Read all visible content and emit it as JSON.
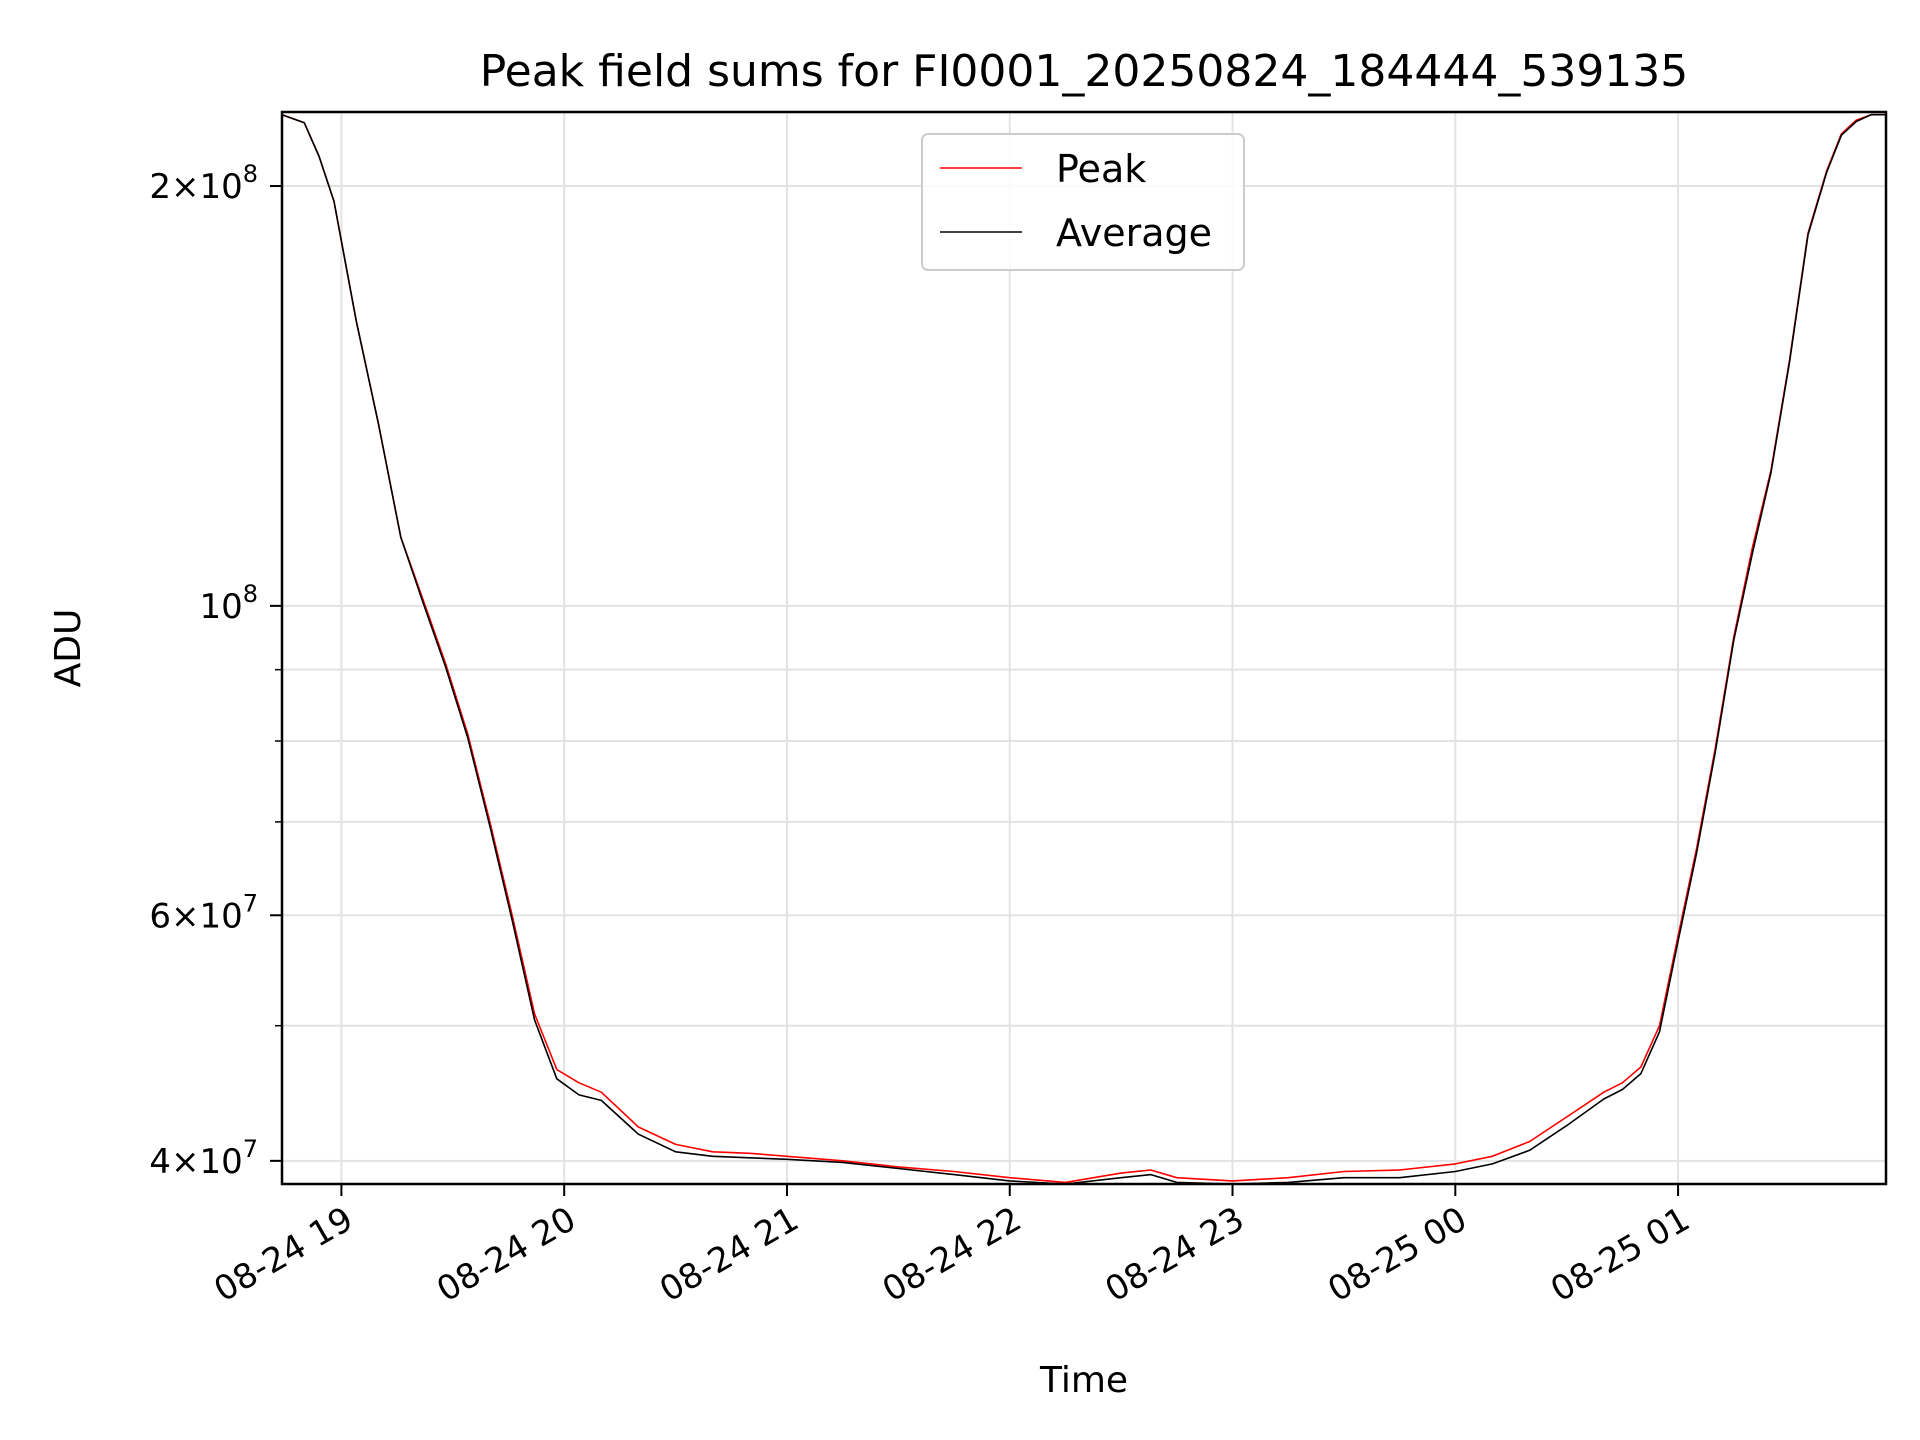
{
  "chart_data": {
    "type": "line",
    "title": "Peak field sums for FI0001_20250824_184444_539135",
    "xlabel": "Time",
    "ylabel": "ADU",
    "yscale": "log",
    "grid": true,
    "legend_position": "upper center",
    "x_ticks": [
      "08-24 19",
      "08-24 20",
      "08-24 21",
      "08-24 22",
      "08-24 23",
      "08-25 00",
      "08-25 01"
    ],
    "xlim": [
      "2025-08-24 18:44",
      "2025-08-25 01:56"
    ],
    "ylim": [
      38500000,
      226000000
    ],
    "y_ticks": [
      {
        "value": 40000000,
        "mantissa": "4",
        "exponent": "7"
      },
      {
        "value": 60000000,
        "mantissa": "6",
        "exponent": "7"
      },
      {
        "value": 100000000,
        "mantissa": "",
        "exponent": "8"
      },
      {
        "value": 200000000,
        "mantissa": "2",
        "exponent": "8"
      }
    ],
    "y_minor_ticks": [
      50000000,
      70000000,
      80000000,
      90000000
    ],
    "series": [
      {
        "name": "Peak",
        "color": "#ff0000",
        "x": [
          "2025-08-24 18:44",
          "2025-08-24 18:50",
          "2025-08-24 18:54",
          "2025-08-24 18:58",
          "2025-08-24 19:04",
          "2025-08-24 19:10",
          "2025-08-24 19:16",
          "2025-08-24 19:22",
          "2025-08-24 19:28",
          "2025-08-24 19:34",
          "2025-08-24 19:40",
          "2025-08-24 19:46",
          "2025-08-24 19:52",
          "2025-08-24 19:58",
          "2025-08-24 20:04",
          "2025-08-24 20:10",
          "2025-08-24 20:20",
          "2025-08-24 20:30",
          "2025-08-24 20:40",
          "2025-08-24 20:50",
          "2025-08-24 21:00",
          "2025-08-24 21:15",
          "2025-08-24 21:30",
          "2025-08-24 21:45",
          "2025-08-24 22:00",
          "2025-08-24 22:15",
          "2025-08-24 22:30",
          "2025-08-24 22:38",
          "2025-08-24 22:45",
          "2025-08-24 23:00",
          "2025-08-24 23:15",
          "2025-08-24 23:30",
          "2025-08-24 23:45",
          "2025-08-25 00:00",
          "2025-08-25 00:10",
          "2025-08-25 00:20",
          "2025-08-25 00:30",
          "2025-08-25 00:40",
          "2025-08-25 00:45",
          "2025-08-25 00:50",
          "2025-08-25 00:55",
          "2025-08-25 01:00",
          "2025-08-25 01:05",
          "2025-08-25 01:10",
          "2025-08-25 01:15",
          "2025-08-25 01:20",
          "2025-08-25 01:25",
          "2025-08-25 01:30",
          "2025-08-25 01:35",
          "2025-08-25 01:40",
          "2025-08-25 01:44",
          "2025-08-25 01:48",
          "2025-08-25 01:52",
          "2025-08-25 01:56"
        ],
        "y": [
          225000000,
          222000000,
          210000000,
          195000000,
          160000000,
          135000000,
          112000000,
          101000000,
          91000000,
          81000000,
          70000000,
          60000000,
          51000000,
          46500000,
          45500000,
          44800000,
          42300000,
          41100000,
          40600000,
          40500000,
          40300000,
          40000000,
          39600000,
          39300000,
          38900000,
          38600000,
          39200000,
          39400000,
          38900000,
          38700000,
          38900000,
          39300000,
          39400000,
          39800000,
          40300000,
          41300000,
          43000000,
          44800000,
          45500000,
          46700000,
          50000000,
          58000000,
          67000000,
          79000000,
          95000000,
          110000000,
          125000000,
          150000000,
          185000000,
          205000000,
          218000000,
          223000000,
          225000000,
          225000000
        ]
      },
      {
        "name": "Average",
        "color": "#000000",
        "x": [
          "2025-08-24 18:44",
          "2025-08-24 18:50",
          "2025-08-24 18:54",
          "2025-08-24 18:58",
          "2025-08-24 19:04",
          "2025-08-24 19:10",
          "2025-08-24 19:16",
          "2025-08-24 19:22",
          "2025-08-24 19:28",
          "2025-08-24 19:34",
          "2025-08-24 19:40",
          "2025-08-24 19:46",
          "2025-08-24 19:52",
          "2025-08-24 19:58",
          "2025-08-24 20:04",
          "2025-08-24 20:10",
          "2025-08-24 20:20",
          "2025-08-24 20:30",
          "2025-08-24 20:40",
          "2025-08-24 20:50",
          "2025-08-24 21:00",
          "2025-08-24 21:15",
          "2025-08-24 21:30",
          "2025-08-24 21:45",
          "2025-08-24 22:00",
          "2025-08-24 22:15",
          "2025-08-24 22:30",
          "2025-08-24 22:38",
          "2025-08-24 22:45",
          "2025-08-24 23:00",
          "2025-08-24 23:15",
          "2025-08-24 23:30",
          "2025-08-24 23:45",
          "2025-08-25 00:00",
          "2025-08-25 00:10",
          "2025-08-25 00:20",
          "2025-08-25 00:30",
          "2025-08-25 00:40",
          "2025-08-25 00:45",
          "2025-08-25 00:50",
          "2025-08-25 00:55",
          "2025-08-25 01:00",
          "2025-08-25 01:05",
          "2025-08-25 01:10",
          "2025-08-25 01:15",
          "2025-08-25 01:20",
          "2025-08-25 01:25",
          "2025-08-25 01:30",
          "2025-08-25 01:35",
          "2025-08-25 01:40",
          "2025-08-25 01:44",
          "2025-08-25 01:48",
          "2025-08-25 01:52",
          "2025-08-25 01:56"
        ],
        "y": [
          225000000,
          222000000,
          210000000,
          195000000,
          160000000,
          135000000,
          112000000,
          100500000,
          90500000,
          80500000,
          69500000,
          59500000,
          50500000,
          45800000,
          44600000,
          44200000,
          41800000,
          40600000,
          40300000,
          40200000,
          40100000,
          39900000,
          39500000,
          39100000,
          38700000,
          38500000,
          38900000,
          39100000,
          38600000,
          38500000,
          38600000,
          38900000,
          38900000,
          39300000,
          39800000,
          40700000,
          42400000,
          44300000,
          45000000,
          46200000,
          49500000,
          57500000,
          66500000,
          78500000,
          94500000,
          109000000,
          124500000,
          149500000,
          184500000,
          204500000,
          217500000,
          222500000,
          225000000,
          225000000
        ]
      }
    ]
  }
}
